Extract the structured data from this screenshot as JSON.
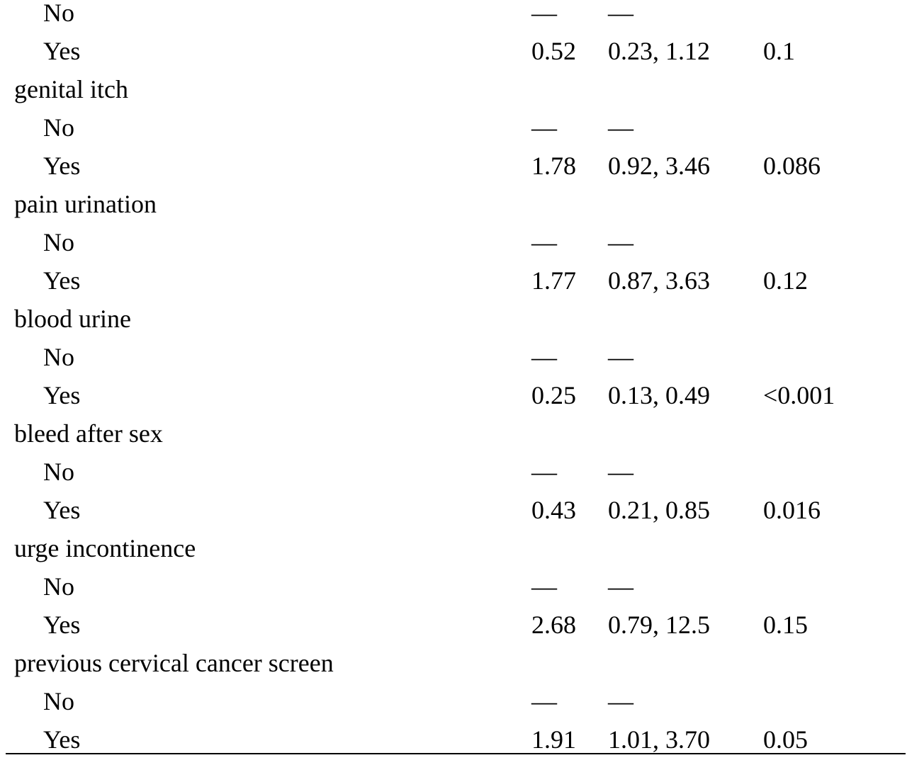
{
  "rows": [
    {
      "label": "No",
      "or": "—",
      "ci": "—",
      "p": ""
    },
    {
      "label": "Yes",
      "or": "0.52",
      "ci": "0.23, 1.12",
      "p": "0.1"
    },
    {
      "label": "genital itch",
      "or": "",
      "ci": "",
      "p": ""
    },
    {
      "label": "No",
      "or": "—",
      "ci": "—",
      "p": ""
    },
    {
      "label": "Yes",
      "or": "1.78",
      "ci": "0.92, 3.46",
      "p": "0.086"
    },
    {
      "label": "pain urination",
      "or": "",
      "ci": "",
      "p": ""
    },
    {
      "label": "No",
      "or": "—",
      "ci": "—",
      "p": ""
    },
    {
      "label": "Yes",
      "or": "1.77",
      "ci": "0.87, 3.63",
      "p": "0.12"
    },
    {
      "label": "blood urine",
      "or": "",
      "ci": "",
      "p": ""
    },
    {
      "label": "No",
      "or": "—",
      "ci": "—",
      "p": ""
    },
    {
      "label": "Yes",
      "or": "0.25",
      "ci": "0.13, 0.49",
      "p": "<0.001"
    },
    {
      "label": "bleed after sex",
      "or": "",
      "ci": "",
      "p": ""
    },
    {
      "label": "No",
      "or": "—",
      "ci": "—",
      "p": ""
    },
    {
      "label": "Yes",
      "or": "0.43",
      "ci": "0.21, 0.85",
      "p": "0.016"
    },
    {
      "label": "urge incontinence",
      "or": "",
      "ci": "",
      "p": ""
    },
    {
      "label": "No",
      "or": "—",
      "ci": "—",
      "p": ""
    },
    {
      "label": "Yes",
      "or": "2.68",
      "ci": "0.79, 12.5",
      "p": "0.15"
    },
    {
      "label": "previous cervical cancer screen",
      "or": "",
      "ci": "",
      "p": ""
    },
    {
      "label": "No",
      "or": "—",
      "ci": "—",
      "p": ""
    },
    {
      "label": "Yes",
      "or": "1.91",
      "ci": "1.01, 3.70",
      "p": "0.05"
    }
  ]
}
